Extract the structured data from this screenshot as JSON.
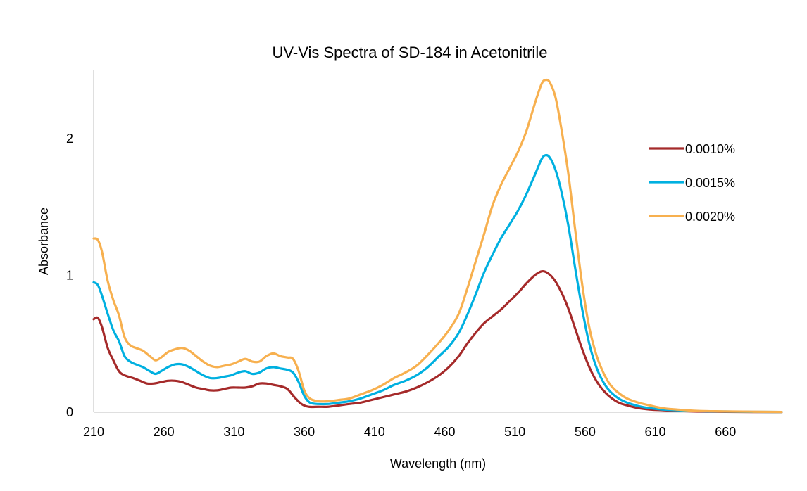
{
  "chart_data": {
    "type": "line",
    "title": "UV-Vis Spectra of SD-184 in Acetonitrile",
    "xlabel": "Wavelength (nm)",
    "ylabel": "Absorbance",
    "xlim": [
      210,
      700
    ],
    "ylim": [
      0,
      2.5
    ],
    "xticks": [
      210,
      260,
      310,
      360,
      410,
      460,
      510,
      560,
      610,
      660
    ],
    "yticks": [
      0,
      1,
      2
    ],
    "grid": false,
    "legend_position": "right",
    "series": [
      {
        "name": "0.0010%",
        "color": "#a52a2a",
        "points": [
          [
            210,
            0.68
          ],
          [
            213,
            0.69
          ],
          [
            216,
            0.62
          ],
          [
            220,
            0.47
          ],
          [
            224,
            0.38
          ],
          [
            228,
            0.3
          ],
          [
            232,
            0.27
          ],
          [
            238,
            0.25
          ],
          [
            243,
            0.23
          ],
          [
            248,
            0.21
          ],
          [
            253,
            0.21
          ],
          [
            258,
            0.22
          ],
          [
            263,
            0.23
          ],
          [
            268,
            0.23
          ],
          [
            273,
            0.22
          ],
          [
            278,
            0.2
          ],
          [
            283,
            0.18
          ],
          [
            288,
            0.17
          ],
          [
            293,
            0.16
          ],
          [
            298,
            0.16
          ],
          [
            303,
            0.17
          ],
          [
            308,
            0.18
          ],
          [
            313,
            0.18
          ],
          [
            318,
            0.18
          ],
          [
            323,
            0.19
          ],
          [
            328,
            0.21
          ],
          [
            333,
            0.21
          ],
          [
            338,
            0.2
          ],
          [
            343,
            0.19
          ],
          [
            348,
            0.17
          ],
          [
            353,
            0.11
          ],
          [
            358,
            0.06
          ],
          [
            363,
            0.04
          ],
          [
            370,
            0.04
          ],
          [
            377,
            0.04
          ],
          [
            385,
            0.05
          ],
          [
            392,
            0.06
          ],
          [
            400,
            0.07
          ],
          [
            408,
            0.09
          ],
          [
            416,
            0.11
          ],
          [
            424,
            0.13
          ],
          [
            432,
            0.15
          ],
          [
            440,
            0.18
          ],
          [
            448,
            0.22
          ],
          [
            456,
            0.27
          ],
          [
            463,
            0.33
          ],
          [
            470,
            0.41
          ],
          [
            476,
            0.5
          ],
          [
            482,
            0.58
          ],
          [
            488,
            0.65
          ],
          [
            494,
            0.7
          ],
          [
            500,
            0.75
          ],
          [
            506,
            0.81
          ],
          [
            512,
            0.87
          ],
          [
            518,
            0.94
          ],
          [
            524,
            1.0
          ],
          [
            529,
            1.03
          ],
          [
            533,
            1.02
          ],
          [
            538,
            0.97
          ],
          [
            543,
            0.88
          ],
          [
            548,
            0.76
          ],
          [
            553,
            0.61
          ],
          [
            558,
            0.46
          ],
          [
            563,
            0.33
          ],
          [
            568,
            0.23
          ],
          [
            573,
            0.16
          ],
          [
            578,
            0.11
          ],
          [
            584,
            0.07
          ],
          [
            590,
            0.05
          ],
          [
            598,
            0.03
          ],
          [
            606,
            0.02
          ],
          [
            615,
            0.015
          ],
          [
            625,
            0.01
          ],
          [
            640,
            0.005
          ],
          [
            660,
            0.003
          ],
          [
            680,
            0.002
          ],
          [
            700,
            0.001
          ]
        ]
      },
      {
        "name": "0.0015%",
        "color": "#00b0e0",
        "points": [
          [
            210,
            0.95
          ],
          [
            213,
            0.93
          ],
          [
            216,
            0.85
          ],
          [
            220,
            0.72
          ],
          [
            224,
            0.6
          ],
          [
            228,
            0.52
          ],
          [
            232,
            0.41
          ],
          [
            236,
            0.37
          ],
          [
            240,
            0.35
          ],
          [
            245,
            0.33
          ],
          [
            250,
            0.3
          ],
          [
            254,
            0.28
          ],
          [
            258,
            0.3
          ],
          [
            263,
            0.33
          ],
          [
            268,
            0.35
          ],
          [
            273,
            0.35
          ],
          [
            278,
            0.33
          ],
          [
            283,
            0.3
          ],
          [
            288,
            0.27
          ],
          [
            293,
            0.25
          ],
          [
            298,
            0.25
          ],
          [
            303,
            0.26
          ],
          [
            308,
            0.27
          ],
          [
            313,
            0.29
          ],
          [
            318,
            0.3
          ],
          [
            323,
            0.28
          ],
          [
            328,
            0.29
          ],
          [
            333,
            0.32
          ],
          [
            338,
            0.33
          ],
          [
            343,
            0.32
          ],
          [
            348,
            0.31
          ],
          [
            352,
            0.29
          ],
          [
            356,
            0.22
          ],
          [
            360,
            0.12
          ],
          [
            364,
            0.07
          ],
          [
            370,
            0.06
          ],
          [
            377,
            0.06
          ],
          [
            385,
            0.07
          ],
          [
            392,
            0.08
          ],
          [
            400,
            0.1
          ],
          [
            408,
            0.13
          ],
          [
            416,
            0.16
          ],
          [
            424,
            0.2
          ],
          [
            432,
            0.23
          ],
          [
            440,
            0.27
          ],
          [
            448,
            0.33
          ],
          [
            456,
            0.41
          ],
          [
            463,
            0.48
          ],
          [
            470,
            0.58
          ],
          [
            476,
            0.71
          ],
          [
            482,
            0.86
          ],
          [
            488,
            1.02
          ],
          [
            494,
            1.15
          ],
          [
            500,
            1.27
          ],
          [
            506,
            1.37
          ],
          [
            512,
            1.47
          ],
          [
            518,
            1.59
          ],
          [
            524,
            1.73
          ],
          [
            529,
            1.85
          ],
          [
            532,
            1.88
          ],
          [
            535,
            1.86
          ],
          [
            539,
            1.77
          ],
          [
            543,
            1.62
          ],
          [
            548,
            1.37
          ],
          [
            553,
            1.05
          ],
          [
            558,
            0.75
          ],
          [
            563,
            0.5
          ],
          [
            568,
            0.33
          ],
          [
            573,
            0.22
          ],
          [
            578,
            0.15
          ],
          [
            584,
            0.1
          ],
          [
            590,
            0.07
          ],
          [
            598,
            0.045
          ],
          [
            606,
            0.03
          ],
          [
            615,
            0.02
          ],
          [
            625,
            0.015
          ],
          [
            640,
            0.008
          ],
          [
            660,
            0.005
          ],
          [
            680,
            0.003
          ],
          [
            700,
            0.002
          ]
        ]
      },
      {
        "name": "0.0020%",
        "color": "#f7b04f",
        "points": [
          [
            210,
            1.27
          ],
          [
            213,
            1.26
          ],
          [
            216,
            1.17
          ],
          [
            220,
            0.96
          ],
          [
            224,
            0.82
          ],
          [
            228,
            0.71
          ],
          [
            232,
            0.55
          ],
          [
            236,
            0.49
          ],
          [
            240,
            0.47
          ],
          [
            245,
            0.45
          ],
          [
            250,
            0.41
          ],
          [
            254,
            0.38
          ],
          [
            258,
            0.4
          ],
          [
            263,
            0.44
          ],
          [
            268,
            0.46
          ],
          [
            273,
            0.47
          ],
          [
            278,
            0.45
          ],
          [
            283,
            0.41
          ],
          [
            288,
            0.37
          ],
          [
            293,
            0.34
          ],
          [
            298,
            0.33
          ],
          [
            303,
            0.34
          ],
          [
            308,
            0.35
          ],
          [
            313,
            0.37
          ],
          [
            318,
            0.39
          ],
          [
            323,
            0.37
          ],
          [
            328,
            0.37
          ],
          [
            333,
            0.41
          ],
          [
            338,
            0.43
          ],
          [
            343,
            0.41
          ],
          [
            348,
            0.4
          ],
          [
            352,
            0.39
          ],
          [
            356,
            0.3
          ],
          [
            360,
            0.16
          ],
          [
            364,
            0.1
          ],
          [
            370,
            0.08
          ],
          [
            377,
            0.08
          ],
          [
            385,
            0.09
          ],
          [
            392,
            0.1
          ],
          [
            400,
            0.13
          ],
          [
            408,
            0.16
          ],
          [
            416,
            0.2
          ],
          [
            424,
            0.25
          ],
          [
            432,
            0.29
          ],
          [
            440,
            0.34
          ],
          [
            448,
            0.42
          ],
          [
            456,
            0.51
          ],
          [
            463,
            0.6
          ],
          [
            470,
            0.72
          ],
          [
            476,
            0.9
          ],
          [
            482,
            1.1
          ],
          [
            488,
            1.3
          ],
          [
            494,
            1.51
          ],
          [
            500,
            1.66
          ],
          [
            506,
            1.78
          ],
          [
            512,
            1.9
          ],
          [
            518,
            2.05
          ],
          [
            524,
            2.25
          ],
          [
            529,
            2.4
          ],
          [
            532,
            2.43
          ],
          [
            535,
            2.41
          ],
          [
            539,
            2.3
          ],
          [
            543,
            2.08
          ],
          [
            548,
            1.75
          ],
          [
            553,
            1.33
          ],
          [
            558,
            0.93
          ],
          [
            563,
            0.62
          ],
          [
            568,
            0.42
          ],
          [
            573,
            0.29
          ],
          [
            578,
            0.2
          ],
          [
            584,
            0.14
          ],
          [
            590,
            0.1
          ],
          [
            598,
            0.07
          ],
          [
            606,
            0.05
          ],
          [
            615,
            0.03
          ],
          [
            625,
            0.02
          ],
          [
            640,
            0.01
          ],
          [
            660,
            0.006
          ],
          [
            680,
            0.004
          ],
          [
            700,
            0.002
          ]
        ]
      }
    ]
  }
}
